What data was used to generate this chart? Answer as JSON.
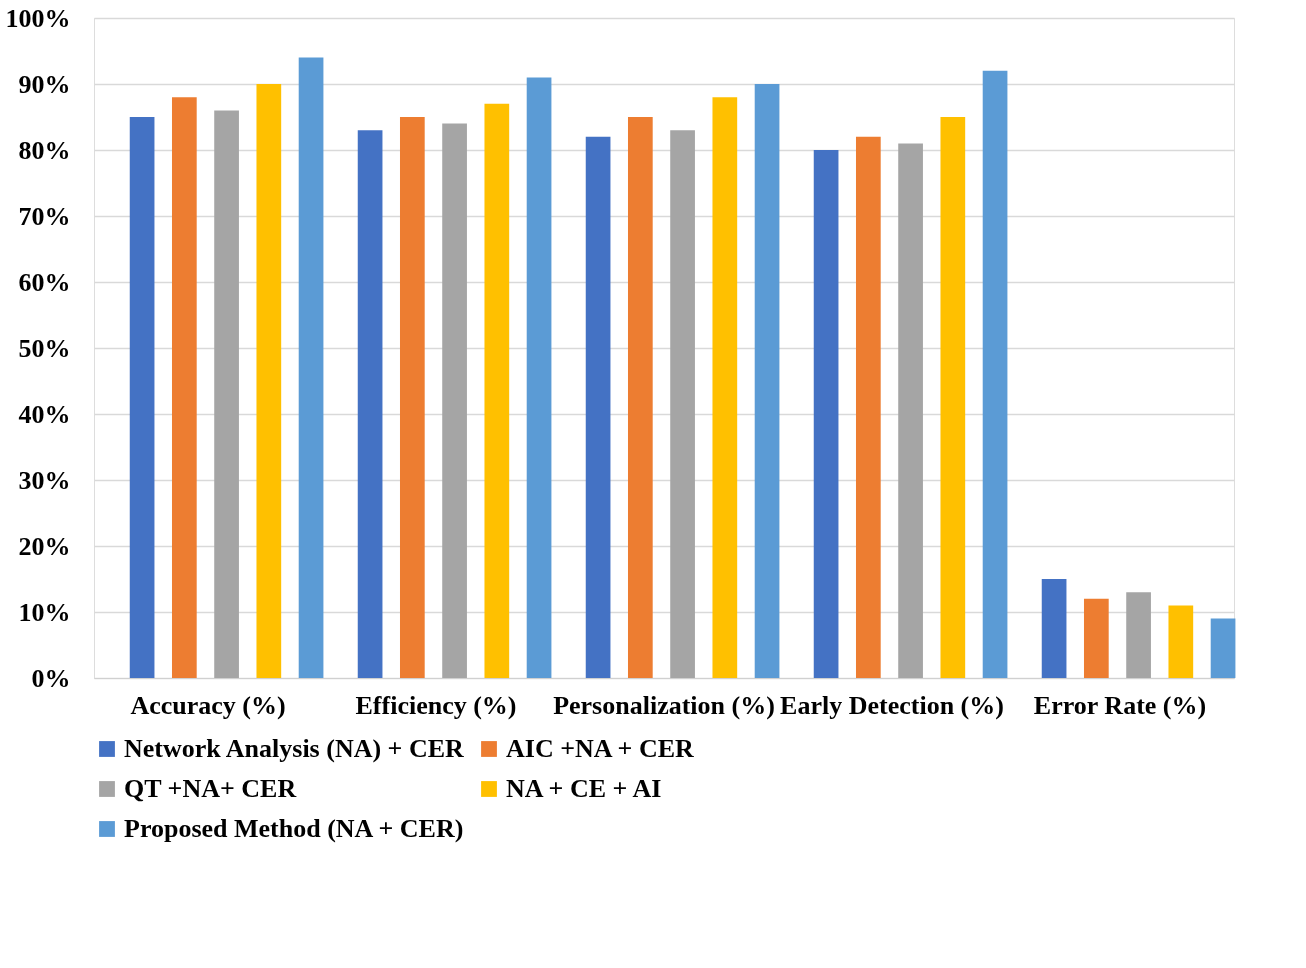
{
  "chart_data": {
    "type": "bar",
    "categories": [
      "Accuracy (%)",
      "Efficiency (%)",
      "Personalization (%)",
      "Early Detection (%)",
      "Error Rate (%)"
    ],
    "series": [
      {
        "name": "Network Analysis (NA) + CER",
        "color": "#4472c4",
        "values": [
          85,
          83,
          82,
          80,
          15
        ]
      },
      {
        "name": "AIC +NA + CER",
        "color": "#ed7d31",
        "values": [
          88,
          85,
          85,
          82,
          12
        ]
      },
      {
        "name": "QT +NA+ CER",
        "color": "#a5a5a5",
        "values": [
          86,
          84,
          83,
          81,
          13
        ]
      },
      {
        "name": "NA + CE + AI",
        "color": "#ffc000",
        "values": [
          90,
          87,
          88,
          85,
          11
        ]
      },
      {
        "name": "Proposed Method (NA + CER)",
        "color": "#5b9bd5",
        "values": [
          94,
          91,
          90,
          92,
          9
        ]
      }
    ],
    "ylim": [
      0,
      100
    ],
    "yticks": [
      {
        "value": 0,
        "label": "0%"
      },
      {
        "value": 10,
        "label": "10%"
      },
      {
        "value": 20,
        "label": "20%"
      },
      {
        "value": 30,
        "label": "30%"
      },
      {
        "value": 40,
        "label": "40%"
      },
      {
        "value": 50,
        "label": "50%"
      },
      {
        "value": 60,
        "label": "60%"
      },
      {
        "value": 70,
        "label": "70%"
      },
      {
        "value": 80,
        "label": "80%"
      },
      {
        "value": 90,
        "label": "90%"
      },
      {
        "value": 100,
        "label": "100%"
      }
    ],
    "grid": "y",
    "legend": "bottom"
  }
}
